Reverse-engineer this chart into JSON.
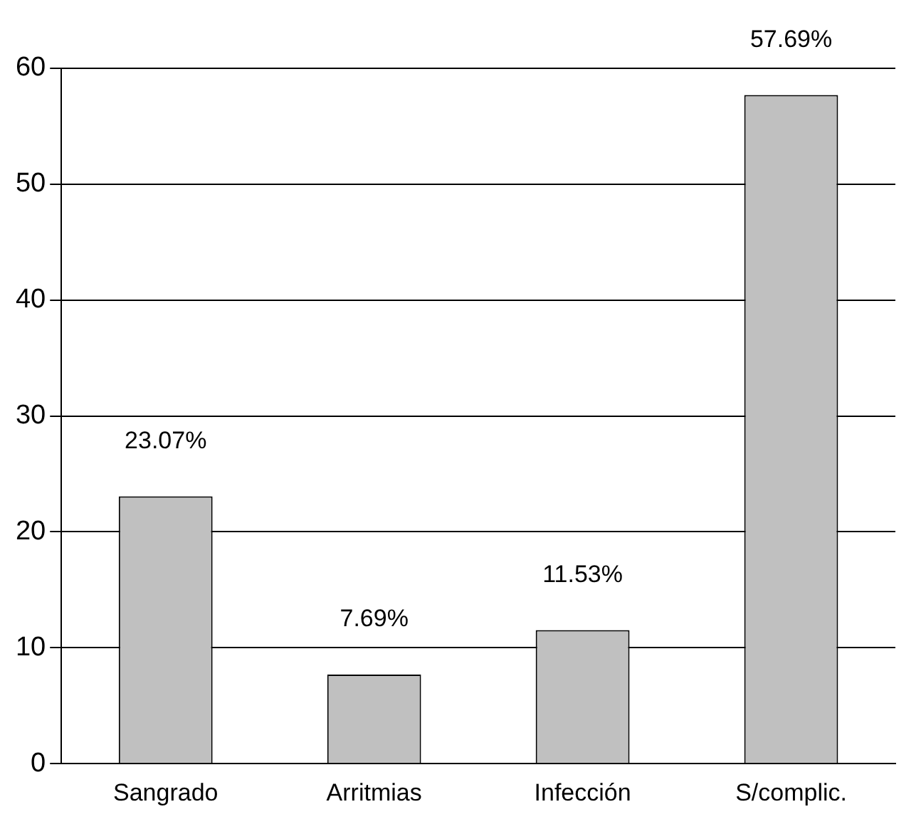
{
  "chart_data": {
    "type": "bar",
    "categories": [
      "Sangrado",
      "Arritmias",
      "Infección",
      "S/complic."
    ],
    "values": [
      23.07,
      7.69,
      11.53,
      57.69
    ],
    "value_labels": [
      "23.07%",
      "7.69%",
      "11.53%",
      "57.69%"
    ],
    "color": "#c0c0c0",
    "ylim": [
      0,
      60
    ],
    "yticks": [
      0,
      10,
      20,
      30,
      40,
      50,
      60
    ],
    "grid": "y",
    "legend": false
  }
}
